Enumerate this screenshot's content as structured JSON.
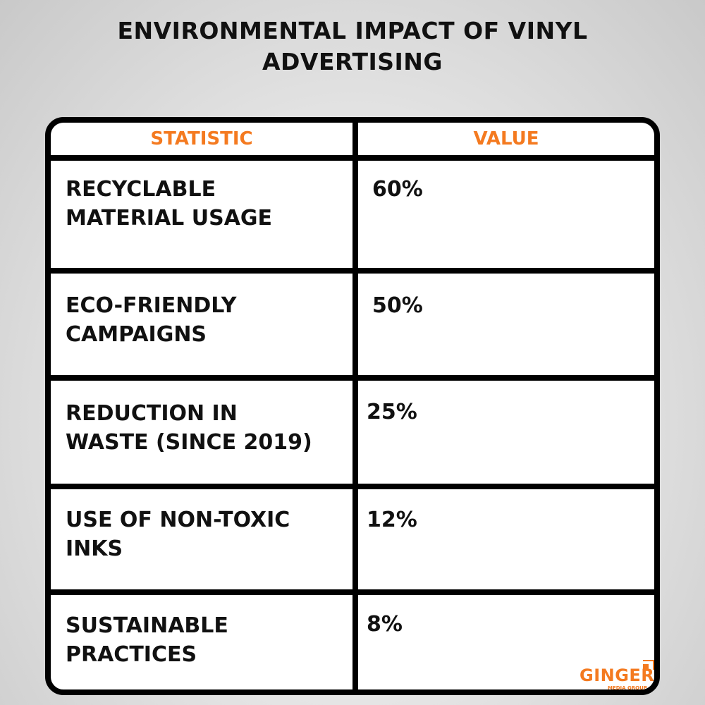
{
  "title_line1": "ENVIRONMENTAL IMPACT OF VINYL",
  "title_line2": "ADVERTISING",
  "headers": {
    "statistic": "STATISTIC",
    "value": "VALUE"
  },
  "rows": [
    {
      "line1": "RECYCLABLE",
      "line2": "MATERIAL USAGE",
      "value": "60%"
    },
    {
      "line1": "ECO-FRIENDLY",
      "line2": "CAMPAIGNS",
      "value": "50%"
    },
    {
      "line1": "REDUCTION IN",
      "line2": "WASTE (SINCE 2019)",
      "value": "25%"
    },
    {
      "line1": "USE OF NON-TOXIC",
      "line2": "INKS",
      "value": "12%"
    },
    {
      "line1": "SUSTAINABLE",
      "line2": "PRACTICES",
      "value": "8%"
    }
  ],
  "logo": {
    "name": "GINGER",
    "tagline": "MEDIA GROUP"
  },
  "colors": {
    "accent": "#f47a20"
  }
}
